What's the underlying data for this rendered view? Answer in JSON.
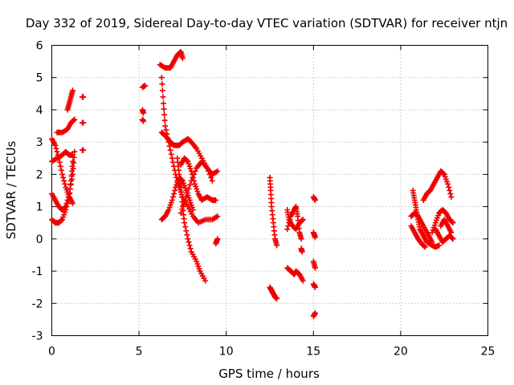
{
  "chart_data": {
    "type": "scatter",
    "title": "Day 332 of 2019, Sidereal Day-to-day VTEC variation (SDTVAR) for receiver ntjn",
    "xlabel": "GPS time / hours",
    "ylabel": "SDTVAR / TECUs",
    "xlim": [
      0,
      25
    ],
    "ylim": [
      -3,
      6
    ],
    "xticks": [
      0,
      5,
      10,
      15,
      20,
      25
    ],
    "yticks": [
      -3,
      -2,
      -1,
      0,
      1,
      2,
      3,
      4,
      5,
      6
    ],
    "grid": true,
    "marker": "+",
    "series_color": "#ee0000",
    "tracks": [
      [
        [
          0.0,
          1.4
        ],
        [
          0.2,
          1.2
        ],
        [
          0.4,
          1.0
        ],
        [
          0.6,
          0.9
        ],
        [
          0.8,
          1.0
        ],
        [
          1.0,
          1.4
        ],
        [
          1.2,
          2.0
        ],
        [
          1.3,
          2.7
        ]
      ],
      [
        [
          0.0,
          0.6
        ],
        [
          0.2,
          0.5
        ],
        [
          0.4,
          0.5
        ],
        [
          0.6,
          0.6
        ],
        [
          0.8,
          0.9
        ],
        [
          1.0,
          1.3
        ],
        [
          1.1,
          1.8
        ],
        [
          1.2,
          2.4
        ]
      ],
      [
        [
          0.0,
          3.1
        ],
        [
          0.2,
          2.9
        ],
        [
          0.4,
          2.5
        ],
        [
          0.6,
          2.0
        ],
        [
          0.8,
          1.6
        ],
        [
          1.0,
          1.3
        ],
        [
          1.2,
          1.1
        ]
      ],
      [
        [
          0.0,
          2.4
        ],
        [
          0.3,
          2.5
        ],
        [
          0.6,
          2.6
        ],
        [
          0.8,
          2.7
        ],
        [
          1.0,
          2.6
        ],
        [
          1.2,
          2.6
        ]
      ],
      [
        [
          0.3,
          3.3
        ],
        [
          0.6,
          3.3
        ],
        [
          0.9,
          3.4
        ],
        [
          1.1,
          3.6
        ],
        [
          1.3,
          3.7
        ]
      ],
      [
        [
          0.9,
          4.0
        ],
        [
          1.0,
          4.2
        ],
        [
          1.1,
          4.4
        ],
        [
          1.2,
          4.6
        ]
      ],
      [
        [
          1.75,
          4.4
        ],
        [
          1.8,
          4.4
        ]
      ],
      [
        [
          1.75,
          3.6
        ],
        [
          1.8,
          3.6
        ]
      ],
      [
        [
          1.75,
          2.75
        ],
        [
          1.8,
          2.75
        ]
      ],
      [
        [
          5.2,
          4.7
        ],
        [
          5.35,
          4.75
        ]
      ],
      [
        [
          5.2,
          4.0
        ],
        [
          5.25,
          3.9
        ]
      ],
      [
        [
          5.2,
          3.7
        ],
        [
          5.25,
          3.65
        ]
      ],
      [
        [
          6.2,
          5.4
        ],
        [
          6.5,
          5.3
        ],
        [
          6.8,
          5.3
        ],
        [
          7.0,
          5.5
        ],
        [
          7.2,
          5.7
        ],
        [
          7.4,
          5.8
        ],
        [
          7.5,
          5.6
        ]
      ],
      [
        [
          6.3,
          5.0
        ],
        [
          6.4,
          4.2
        ],
        [
          6.5,
          3.5
        ],
        [
          6.7,
          3.0
        ],
        [
          6.9,
          2.5
        ],
        [
          7.1,
          2.0
        ],
        [
          7.3,
          1.6
        ],
        [
          7.5,
          1.3
        ],
        [
          7.8,
          1.0
        ],
        [
          8.1,
          0.7
        ],
        [
          8.4,
          0.5
        ],
        [
          8.8,
          0.6
        ],
        [
          9.2,
          0.6
        ],
        [
          9.5,
          0.7
        ]
      ],
      [
        [
          6.3,
          3.3
        ],
        [
          6.5,
          3.2
        ],
        [
          6.8,
          3.0
        ],
        [
          7.0,
          2.9
        ],
        [
          7.3,
          2.9
        ],
        [
          7.5,
          3.0
        ],
        [
          7.8,
          3.1
        ],
        [
          8.0,
          3.0
        ],
        [
          8.3,
          2.8
        ],
        [
          8.6,
          2.5
        ],
        [
          8.9,
          2.2
        ],
        [
          9.2,
          2.0
        ],
        [
          9.5,
          2.1
        ]
      ],
      [
        [
          6.3,
          0.6
        ],
        [
          6.5,
          0.7
        ],
        [
          6.7,
          0.9
        ],
        [
          6.9,
          1.2
        ],
        [
          7.1,
          1.6
        ],
        [
          7.3,
          1.9
        ],
        [
          7.5,
          1.8
        ],
        [
          7.7,
          1.5
        ],
        [
          7.9,
          1.2
        ],
        [
          8.1,
          0.9
        ]
      ],
      [
        [
          7.2,
          2.5
        ],
        [
          7.3,
          2.0
        ],
        [
          7.4,
          1.6
        ],
        [
          7.5,
          1.0
        ],
        [
          7.6,
          0.5
        ],
        [
          7.8,
          0.0
        ],
        [
          8.0,
          -0.4
        ],
        [
          8.3,
          -0.7
        ],
        [
          8.5,
          -1.0
        ],
        [
          8.8,
          -1.3
        ]
      ],
      [
        [
          7.4,
          2.3
        ],
        [
          7.6,
          2.5
        ],
        [
          7.8,
          2.4
        ],
        [
          8.0,
          2.1
        ],
        [
          8.2,
          1.7
        ],
        [
          8.4,
          1.4
        ],
        [
          8.6,
          1.2
        ],
        [
          8.9,
          1.3
        ],
        [
          9.2,
          1.2
        ],
        [
          9.4,
          1.2
        ]
      ],
      [
        [
          7.4,
          0.8
        ],
        [
          7.7,
          1.3
        ],
        [
          8.0,
          1.8
        ],
        [
          8.3,
          2.2
        ],
        [
          8.6,
          2.4
        ],
        [
          8.9,
          2.2
        ],
        [
          9.2,
          1.8
        ]
      ],
      [
        [
          9.4,
          -0.15
        ],
        [
          9.5,
          0.0
        ]
      ],
      [
        [
          12.5,
          1.9
        ],
        [
          12.55,
          1.5
        ],
        [
          12.6,
          1.0
        ],
        [
          12.7,
          0.5
        ],
        [
          12.8,
          0.0
        ],
        [
          12.9,
          -0.2
        ]
      ],
      [
        [
          12.5,
          -1.5
        ],
        [
          12.6,
          -1.6
        ],
        [
          12.7,
          -1.7
        ],
        [
          12.8,
          -1.8
        ],
        [
          12.9,
          -1.85
        ]
      ],
      [
        [
          13.5,
          0.3
        ],
        [
          13.7,
          0.7
        ],
        [
          13.9,
          0.9
        ],
        [
          14.0,
          1.0
        ],
        [
          14.1,
          0.7
        ],
        [
          14.2,
          0.2
        ],
        [
          14.3,
          0.0
        ]
      ],
      [
        [
          13.5,
          0.9
        ],
        [
          13.6,
          0.6
        ],
        [
          13.8,
          0.4
        ],
        [
          14.0,
          0.3
        ],
        [
          14.2,
          0.5
        ],
        [
          14.4,
          0.6
        ]
      ],
      [
        [
          13.5,
          -0.9
        ],
        [
          13.7,
          -1.0
        ],
        [
          13.9,
          -1.1
        ],
        [
          14.0,
          -1.0
        ],
        [
          14.2,
          -1.1
        ],
        [
          14.4,
          -1.3
        ]
      ],
      [
        [
          14.3,
          -0.3
        ],
        [
          14.35,
          -0.4
        ]
      ],
      [
        [
          15.0,
          1.3
        ],
        [
          15.1,
          1.2
        ]
      ],
      [
        [
          15.0,
          0.2
        ],
        [
          15.1,
          0.05
        ]
      ],
      [
        [
          15.0,
          -0.7
        ],
        [
          15.1,
          -0.9
        ]
      ],
      [
        [
          15.0,
          -1.4
        ],
        [
          15.1,
          -1.5
        ]
      ],
      [
        [
          15.0,
          -2.4
        ],
        [
          15.1,
          -2.3
        ]
      ],
      [
        [
          20.7,
          1.5
        ],
        [
          20.8,
          1.2
        ],
        [
          20.9,
          0.9
        ],
        [
          21.0,
          0.6
        ],
        [
          21.1,
          0.3
        ],
        [
          21.3,
          0.1
        ],
        [
          21.5,
          -0.1
        ],
        [
          21.8,
          -0.2
        ],
        [
          22.0,
          -0.25
        ],
        [
          22.2,
          -0.2
        ]
      ],
      [
        [
          20.6,
          0.7
        ],
        [
          20.8,
          0.8
        ],
        [
          21.0,
          0.7
        ],
        [
          21.2,
          0.5
        ],
        [
          21.4,
          0.3
        ],
        [
          21.6,
          0.1
        ],
        [
          21.8,
          -0.1
        ]
      ],
      [
        [
          20.6,
          0.4
        ],
        [
          20.8,
          0.2
        ],
        [
          21.0,
          0.0
        ],
        [
          21.2,
          -0.15
        ],
        [
          21.4,
          -0.25
        ]
      ],
      [
        [
          21.3,
          1.2
        ],
        [
          21.5,
          1.4
        ],
        [
          21.7,
          1.5
        ],
        [
          21.9,
          1.7
        ],
        [
          22.1,
          1.9
        ],
        [
          22.3,
          2.1
        ],
        [
          22.5,
          2.0
        ],
        [
          22.7,
          1.7
        ],
        [
          22.9,
          1.3
        ]
      ],
      [
        [
          21.8,
          0.2
        ],
        [
          22.0,
          0.5
        ],
        [
          22.2,
          0.8
        ],
        [
          22.4,
          0.9
        ],
        [
          22.6,
          0.8
        ],
        [
          22.8,
          0.6
        ],
        [
          23.0,
          0.5
        ]
      ],
      [
        [
          22.0,
          0.3
        ],
        [
          22.2,
          0.1
        ],
        [
          22.4,
          -0.1
        ],
        [
          22.6,
          0.0
        ],
        [
          22.8,
          0.1
        ],
        [
          23.0,
          0.0
        ]
      ],
      [
        [
          22.3,
          0.4
        ],
        [
          22.5,
          0.6
        ],
        [
          22.7,
          0.4
        ],
        [
          22.9,
          0.2
        ]
      ]
    ]
  }
}
